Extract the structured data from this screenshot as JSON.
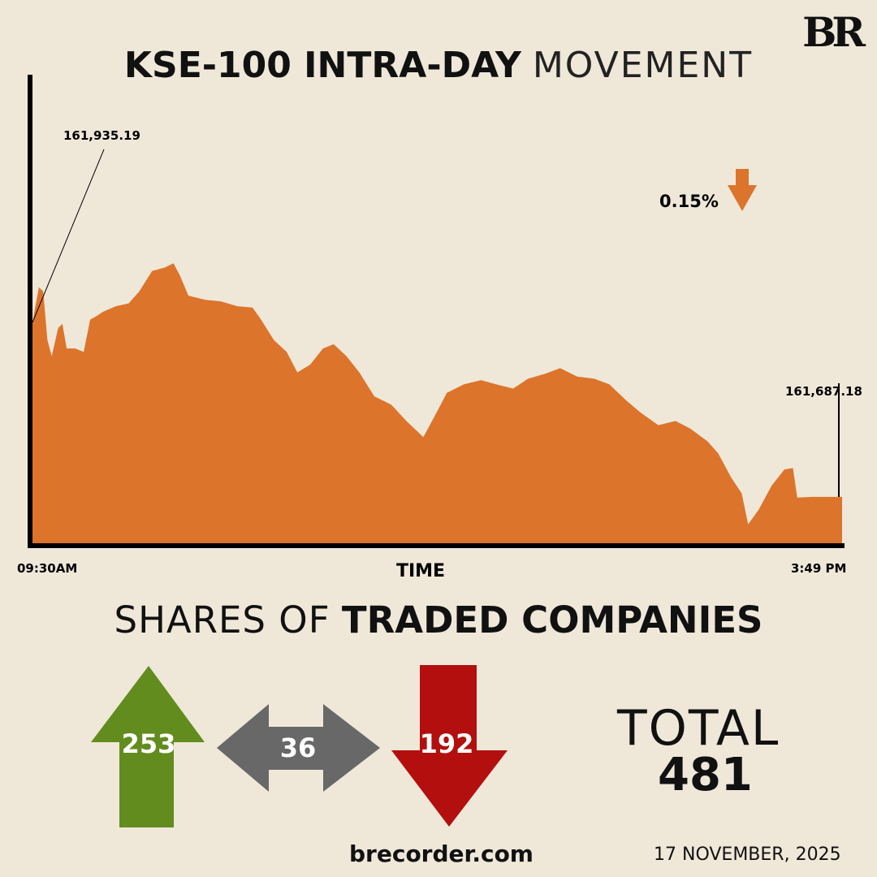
{
  "logo": "BR",
  "title": {
    "bold": "KSE-100 INTRA-DAY",
    "light": "MOVEMENT"
  },
  "colors": {
    "background": "#efe8d9",
    "area": "#dc742c",
    "up": "#628c1e",
    "unchanged": "#686868",
    "down": "#b30f0f"
  },
  "chart_data": {
    "type": "area",
    "title": "KSE-100 INTRA-DAY MOVEMENT",
    "xlabel": "TIME",
    "x_tick_labels": [
      "09:30AM",
      "3:49 PM"
    ],
    "x_unit": "minutes since 09:30",
    "xlim": [
      0,
      379
    ],
    "ylim": [
      161620,
      162287
    ],
    "grid": false,
    "annotations": {
      "open": "161,935.19",
      "close": "161,687.18",
      "change": "0.15%",
      "change_direction": "down"
    },
    "points": [
      [
        0,
        161935
      ],
      [
        3,
        161985
      ],
      [
        5,
        161979
      ],
      [
        7,
        161910
      ],
      [
        9,
        161887
      ],
      [
        12,
        161927
      ],
      [
        14,
        161933
      ],
      [
        16,
        161898
      ],
      [
        20,
        161898
      ],
      [
        24,
        161893
      ],
      [
        27,
        161939
      ],
      [
        30,
        161944
      ],
      [
        33,
        161950
      ],
      [
        39,
        161958
      ],
      [
        45,
        161962
      ],
      [
        50,
        161979
      ],
      [
        56,
        162008
      ],
      [
        62,
        162013
      ],
      [
        66,
        162019
      ],
      [
        69,
        162002
      ],
      [
        73,
        161973
      ],
      [
        81,
        161967
      ],
      [
        88,
        161965
      ],
      [
        96,
        161958
      ],
      [
        103,
        161956
      ],
      [
        107,
        161939
      ],
      [
        113,
        161910
      ],
      [
        119,
        161893
      ],
      [
        124,
        161864
      ],
      [
        130,
        161875
      ],
      [
        136,
        161898
      ],
      [
        141,
        161904
      ],
      [
        147,
        161887
      ],
      [
        153,
        161864
      ],
      [
        160,
        161830
      ],
      [
        168,
        161818
      ],
      [
        175,
        161795
      ],
      [
        183,
        161772
      ],
      [
        189,
        161806
      ],
      [
        194,
        161835
      ],
      [
        202,
        161847
      ],
      [
        210,
        161853
      ],
      [
        217,
        161847
      ],
      [
        225,
        161841
      ],
      [
        232,
        161855
      ],
      [
        240,
        161862
      ],
      [
        247,
        161870
      ],
      [
        255,
        161858
      ],
      [
        263,
        161855
      ],
      [
        270,
        161847
      ],
      [
        278,
        161824
      ],
      [
        285,
        161806
      ],
      [
        293,
        161789
      ],
      [
        301,
        161795
      ],
      [
        308,
        161784
      ],
      [
        316,
        161766
      ],
      [
        321,
        161749
      ],
      [
        327,
        161715
      ],
      [
        332,
        161692
      ],
      [
        335,
        161648
      ],
      [
        340,
        161669
      ],
      [
        346,
        161703
      ],
      [
        352,
        161726
      ],
      [
        356,
        161728
      ],
      [
        358,
        161686
      ],
      [
        365,
        161687
      ],
      [
        379,
        161687
      ]
    ]
  },
  "shares": {
    "heading_light": "SHARES OF",
    "heading_bold": "TRADED COMPANIES",
    "advanced": "253",
    "unchanged": "36",
    "declined": "192",
    "total_label": "TOTAL",
    "total_value": "481"
  },
  "footer": {
    "site": "brecorder.com",
    "date": "17 NOVEMBER, 2025"
  }
}
